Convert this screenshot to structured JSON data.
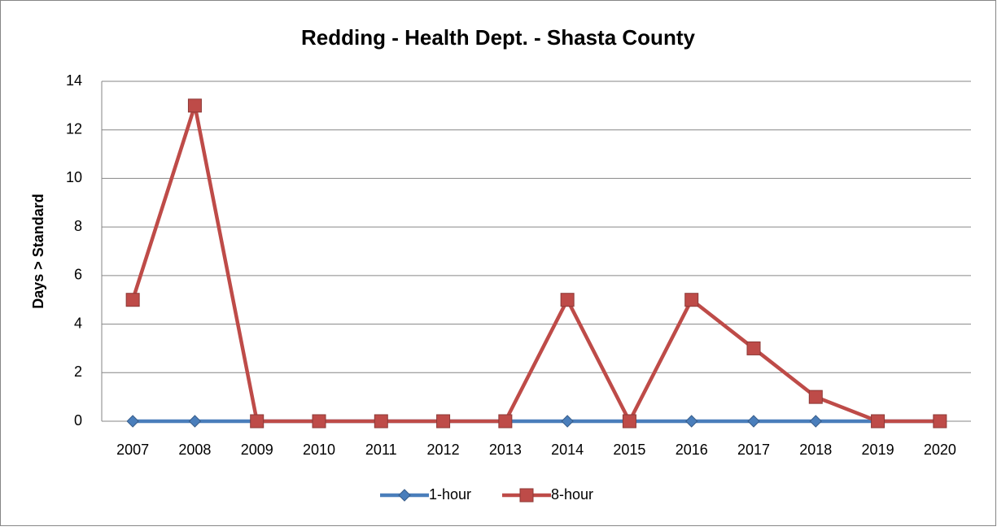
{
  "chart_data": {
    "type": "line",
    "title": "Redding - Health Dept. - Shasta County",
    "y_label": "Days > Standard",
    "categories": [
      "2007",
      "2008",
      "2009",
      "2010",
      "2011",
      "2012",
      "2013",
      "2014",
      "2015",
      "2016",
      "2017",
      "2018",
      "2019",
      "2020"
    ],
    "series": [
      {
        "name": "1-hour",
        "color": "#4a7ebb",
        "marker": "diamond",
        "values": [
          0,
          0,
          0,
          0,
          0,
          0,
          0,
          0,
          0,
          0,
          0,
          0,
          0,
          0
        ]
      },
      {
        "name": "8-hour",
        "color": "#be4b48",
        "marker": "square",
        "values": [
          5,
          13,
          0,
          0,
          0,
          0,
          0,
          5,
          0,
          5,
          3,
          1,
          0,
          0
        ]
      }
    ],
    "ylim": [
      0,
      14
    ],
    "yticks": [
      0,
      2,
      4,
      6,
      8,
      10,
      12,
      14
    ],
    "grid": true,
    "legend": "bottom"
  }
}
